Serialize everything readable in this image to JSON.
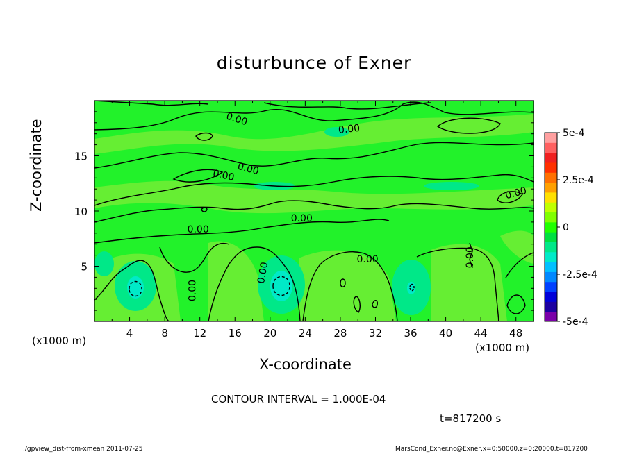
{
  "chart_data": {
    "type": "heatmap",
    "title": "disturbunce of Exner",
    "xlabel": "X-coordinate",
    "ylabel": "Z-coordinate",
    "x_unit_left": "(x1000 m)",
    "x_unit_right": "(x1000 m)",
    "xlim": [
      0,
      50
    ],
    "ylim": [
      0,
      20
    ],
    "x_ticks": [
      4,
      8,
      12,
      16,
      20,
      24,
      28,
      32,
      36,
      40,
      44,
      48
    ],
    "y_ticks": [
      5,
      10,
      15
    ],
    "contour_labels": [
      "0.00",
      "0.00",
      "0.00",
      "0.00",
      "0.00",
      "0.00",
      "0.00",
      "0.00",
      "0.00",
      "0.00",
      "0.00"
    ],
    "contour_interval_text": "CONTOUR INTERVAL = 1.000E-04",
    "time_text": "t=817200 s",
    "colorbar": {
      "min": -0.0005,
      "max": 0.0005,
      "tick_labels": [
        "5e-4",
        "2.5e-4",
        "0",
        "-2.5e-4",
        "-5e-4"
      ],
      "tick_values": [
        0.0005,
        0.00025,
        0,
        -0.00025,
        -0.0005
      ],
      "colors": [
        "#7a00a8",
        "#1c00a0",
        "#0000d8",
        "#0040ff",
        "#0088ff",
        "#00c0ff",
        "#00eac8",
        "#00e888",
        "#00e040",
        "#20ff00",
        "#80ff00",
        "#c0ff00",
        "#ffe000",
        "#ffa000",
        "#ff7000",
        "#ff3000",
        "#f02020",
        "#ff6060",
        "#ffa0a0"
      ]
    },
    "anomalies": [
      {
        "x": 4.8,
        "z": 3.0,
        "value": -0.00012
      },
      {
        "x": 21.2,
        "z": 3.4,
        "value": -0.00015
      },
      {
        "x": 35.9,
        "z": 3.0,
        "value": -0.0001
      },
      {
        "x": 30.5,
        "z": 15.0,
        "value": 6e-05
      },
      {
        "x": 18.0,
        "z": 13.2,
        "value": 6e-05
      },
      {
        "x": 8.0,
        "z": 6.5,
        "value": 8e-05
      }
    ]
  },
  "footer": {
    "left": "./gpview_dist-from-xmean  2011-07-25",
    "right": "MarsCond_Exner.nc@Exner,x=0:50000,z=0:20000,t=817200"
  }
}
